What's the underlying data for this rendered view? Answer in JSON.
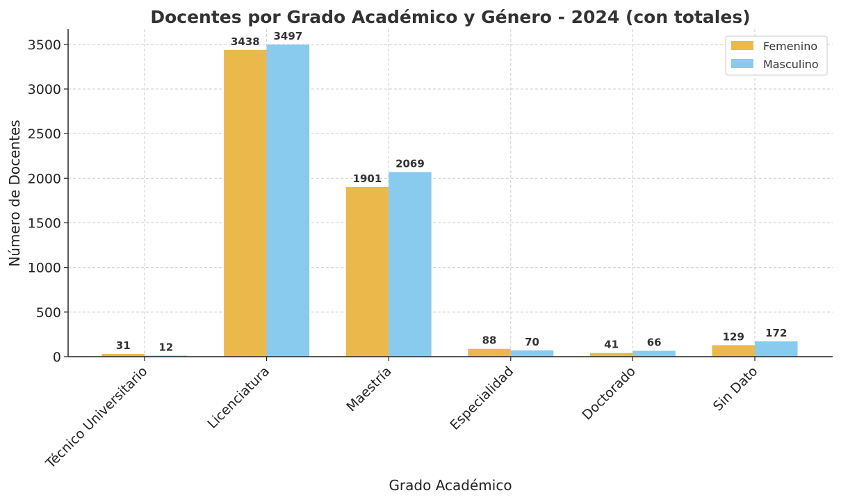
{
  "chart_data": {
    "type": "bar",
    "title": "Docentes por Grado Académico y Género - 2024 (con totales)",
    "xlabel": "Grado Académico",
    "ylabel": "Número de Docentes",
    "categories": [
      "Técnico Universitario",
      "Licenciatura",
      "Maestría",
      "Especialidad",
      "Doctorado",
      "Sin Dato"
    ],
    "series": [
      {
        "name": "Femenino",
        "values": [
          31,
          3438,
          1901,
          88,
          41,
          129
        ],
        "color": "#ebb84b"
      },
      {
        "name": "Masculino",
        "values": [
          12,
          3497,
          2069,
          70,
          66,
          172
        ],
        "color": "#89caef"
      }
    ],
    "ylim": [
      0,
      3670
    ],
    "yticks": [
      0,
      500,
      1000,
      1500,
      2000,
      2500,
      3000,
      3500
    ],
    "grid": true,
    "legend_position": "top-right"
  }
}
